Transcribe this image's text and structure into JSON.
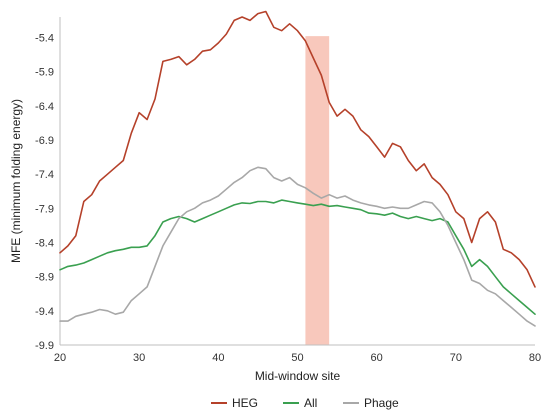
{
  "chart_data": {
    "type": "line",
    "title": "",
    "xlabel": "Mid-window site",
    "ylabel": "MFE (minimum folding energy)",
    "xlim": [
      20,
      80
    ],
    "ylim": [
      -9.9,
      -5.1
    ],
    "x_ticks": [
      20,
      30,
      40,
      50,
      60,
      70,
      80
    ],
    "y_ticks": [
      -5.4,
      -5.9,
      -6.4,
      -6.9,
      -7.4,
      -7.9,
      -8.4,
      -8.9,
      -9.4,
      -9.9
    ],
    "x_tick_labels": [
      "20",
      "30",
      "40",
      "50",
      "60",
      "70",
      "80"
    ],
    "y_tick_labels": [
      "-5.4",
      "-5.9",
      "-6.4",
      "-6.9",
      "-7.4",
      "-7.9",
      "-8.4",
      "-8.9",
      "-9.4",
      "-9.9"
    ],
    "grid": false,
    "legend_position": "bottom",
    "highlight_band": {
      "x_start": 51,
      "x_end": 54,
      "y_top": -5.38,
      "color": "#f8c8bc"
    },
    "x": [
      20,
      21,
      22,
      23,
      24,
      25,
      26,
      27,
      28,
      29,
      30,
      31,
      32,
      33,
      34,
      35,
      36,
      37,
      38,
      39,
      40,
      41,
      42,
      43,
      44,
      45,
      46,
      47,
      48,
      49,
      50,
      51,
      52,
      53,
      54,
      55,
      56,
      57,
      58,
      59,
      60,
      61,
      62,
      63,
      64,
      65,
      66,
      67,
      68,
      69,
      70,
      71,
      72,
      73,
      74,
      75,
      76,
      77,
      78,
      79,
      80
    ],
    "series": [
      {
        "name": "HEG",
        "color": "#b5412a",
        "values": [
          -8.55,
          -8.45,
          -8.3,
          -7.8,
          -7.7,
          -7.5,
          -7.4,
          -7.3,
          -7.2,
          -6.8,
          -6.5,
          -6.6,
          -6.3,
          -5.75,
          -5.72,
          -5.68,
          -5.8,
          -5.72,
          -5.6,
          -5.58,
          -5.48,
          -5.35,
          -5.15,
          -5.1,
          -5.15,
          -5.05,
          -5.02,
          -5.25,
          -5.3,
          -5.2,
          -5.3,
          -5.45,
          -5.7,
          -5.95,
          -6.35,
          -6.55,
          -6.45,
          -6.55,
          -6.75,
          -6.85,
          -7.0,
          -7.15,
          -6.95,
          -7.0,
          -7.2,
          -7.35,
          -7.25,
          -7.45,
          -7.55,
          -7.7,
          -7.95,
          -8.05,
          -8.4,
          -8.05,
          -7.95,
          -8.1,
          -8.5,
          -8.55,
          -8.65,
          -8.8,
          -9.05
        ]
      },
      {
        "name": "All",
        "color": "#3aa050",
        "values": [
          -8.8,
          -8.75,
          -8.73,
          -8.7,
          -8.65,
          -8.6,
          -8.55,
          -8.52,
          -8.5,
          -8.47,
          -8.47,
          -8.45,
          -8.3,
          -8.1,
          -8.05,
          -8.02,
          -8.05,
          -8.1,
          -8.05,
          -8.0,
          -7.95,
          -7.9,
          -7.85,
          -7.82,
          -7.83,
          -7.8,
          -7.8,
          -7.82,
          -7.78,
          -7.8,
          -7.82,
          -7.84,
          -7.86,
          -7.84,
          -7.87,
          -7.86,
          -7.88,
          -7.9,
          -7.92,
          -7.97,
          -7.98,
          -8.0,
          -7.97,
          -8.02,
          -8.05,
          -8.02,
          -8.05,
          -8.08,
          -8.05,
          -8.1,
          -8.3,
          -8.5,
          -8.75,
          -8.65,
          -8.75,
          -8.9,
          -9.05,
          -9.15,
          -9.25,
          -9.35,
          -9.45
        ]
      },
      {
        "name": "Phage",
        "color": "#a8a8a8",
        "values": [
          -9.55,
          -9.55,
          -9.48,
          -9.45,
          -9.42,
          -9.38,
          -9.4,
          -9.45,
          -9.42,
          -9.25,
          -9.15,
          -9.05,
          -8.75,
          -8.45,
          -8.25,
          -8.05,
          -7.95,
          -7.9,
          -7.82,
          -7.78,
          -7.72,
          -7.62,
          -7.52,
          -7.45,
          -7.35,
          -7.3,
          -7.32,
          -7.45,
          -7.5,
          -7.45,
          -7.55,
          -7.6,
          -7.68,
          -7.75,
          -7.7,
          -7.75,
          -7.72,
          -7.78,
          -7.82,
          -7.85,
          -7.87,
          -7.9,
          -7.88,
          -7.9,
          -7.9,
          -7.85,
          -7.8,
          -7.82,
          -7.95,
          -8.15,
          -8.4,
          -8.65,
          -8.95,
          -9.0,
          -9.1,
          -9.15,
          -9.25,
          -9.35,
          -9.45,
          -9.55,
          -9.62
        ]
      }
    ]
  }
}
